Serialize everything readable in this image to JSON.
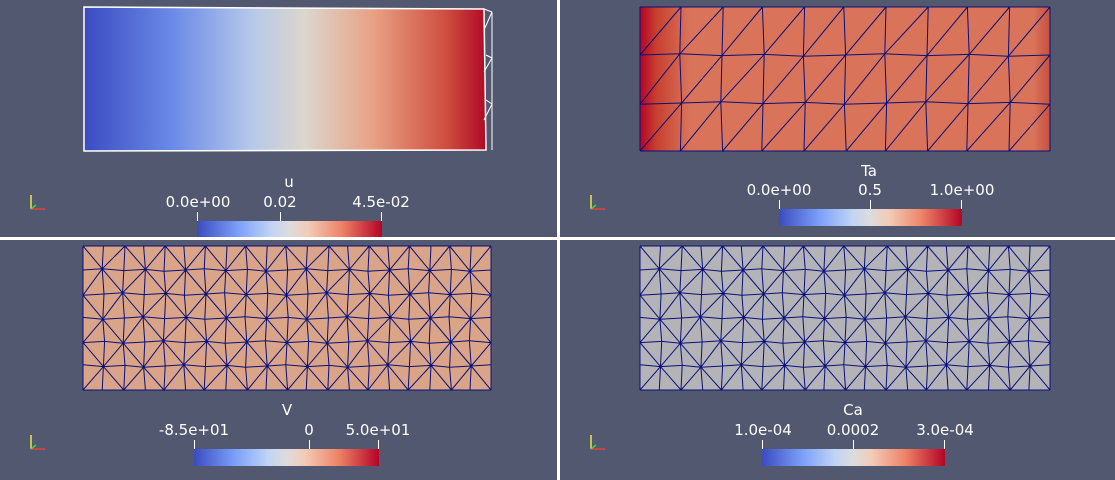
{
  "views": {
    "top_left": {
      "array_name": "u",
      "colorbar": {
        "min_label": "0.0e+00",
        "mid_label": "0.02",
        "max_label": "4.5e-02"
      }
    },
    "top_right": {
      "array_name": "Ta",
      "colorbar": {
        "min_label": "0.0e+00",
        "mid_label": "0.5",
        "max_label": "1.0e+00"
      }
    },
    "bottom_left": {
      "array_name": "V",
      "colorbar": {
        "min_label": "-8.5e+01",
        "mid_label": "0",
        "max_label": "5.0e+01"
      }
    },
    "bottom_right": {
      "array_name": "Ca",
      "colorbar": {
        "min_label": "1.0e-04",
        "mid_label": "0.0002",
        "max_label": "3.0e-04"
      }
    }
  },
  "colors": {
    "background": "#525870",
    "mesh_edges": "#0a1078",
    "solid_v": "#d9a487",
    "solid_ca": "#b4b4b8",
    "solid_ta": "#d9735a"
  }
}
